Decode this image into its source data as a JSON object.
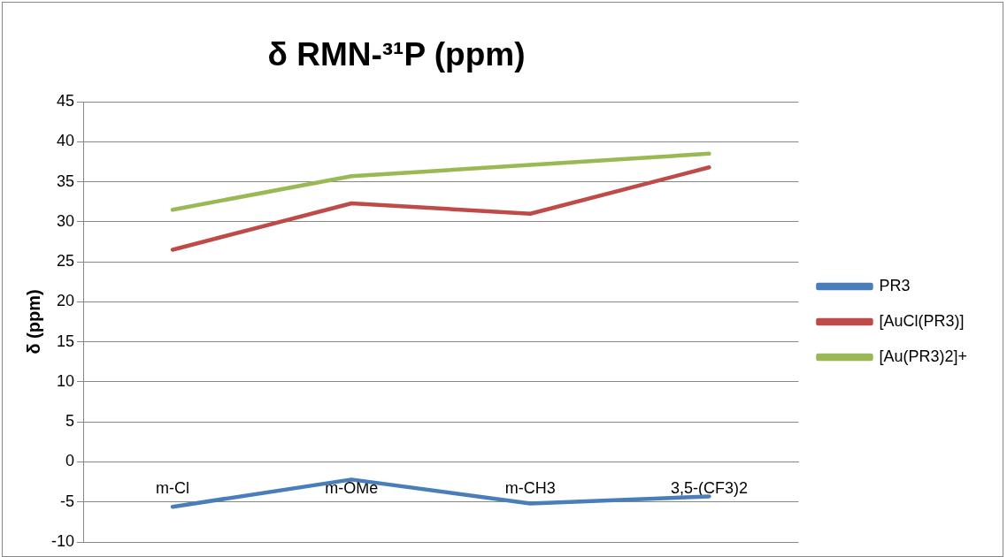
{
  "chart_data": {
    "type": "line",
    "title": "δ RMN-³¹P (ppm)",
    "ylabel": "δ (ppm)",
    "categories": [
      "m-Cl",
      "m-OMe",
      "m-CH3",
      "3,5-(CF3)2"
    ],
    "series": [
      {
        "name": "PR3",
        "color": "#4a7ebb",
        "values": [
          -5.6,
          -2.2,
          -5.2,
          -4.3
        ]
      },
      {
        "name": "[AuCl(PR3)]",
        "color": "#be4b48",
        "values": [
          26.5,
          32.3,
          31.0,
          36.8
        ]
      },
      {
        "name": "[Au(PR3)2]+",
        "color": "#98b954",
        "values": [
          31.5,
          35.7,
          37.1,
          38.5
        ]
      }
    ],
    "ylim": [
      -10,
      45
    ],
    "yticks": [
      -10,
      -5,
      0,
      5,
      10,
      15,
      20,
      25,
      30,
      35,
      40,
      45
    ],
    "grid": "y",
    "legend": "right",
    "marker": "none",
    "line_style": "solid"
  }
}
